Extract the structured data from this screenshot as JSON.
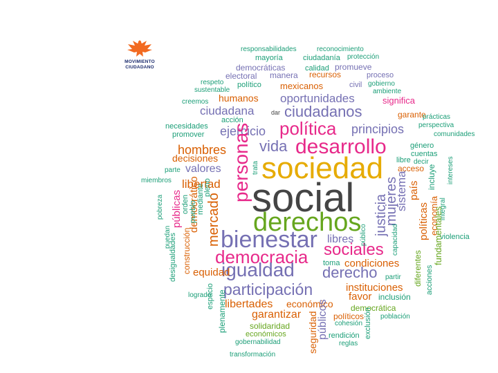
{
  "logo": {
    "line1": "MOVIMIENTO",
    "line2": "CIUDADANO"
  },
  "colors": {
    "orange": "#d95f02",
    "purple": "#7570b3",
    "magenta": "#e7298a",
    "green": "#66a61e",
    "yellow": "#e6ab02",
    "teal": "#1b9e77",
    "gray": "#444444"
  },
  "words": [
    "responsabilidades",
    "reconocimiento",
    "mayoría",
    "ciudadanía",
    "protección",
    "democráticas",
    "calidad",
    "promueve",
    "electoral",
    "manera",
    "recursos",
    "proceso",
    "respeto",
    "político",
    "mexicanos",
    "civil",
    "gobierno",
    "sustentable",
    "ambiente",
    "creemos",
    "humanos",
    "oportunidades",
    "significa",
    "ciudadana",
    "dar",
    "ciudadanos",
    "garante",
    "acción",
    "prácticas",
    "necesidades",
    "política",
    "principios",
    "perspectiva",
    "promover",
    "ejercicio",
    "comunidades",
    "vida",
    "desarrollo",
    "género",
    "hombres",
    "cuentas",
    "decisiones",
    "decir",
    "sociedad",
    "libre",
    "acceso",
    "parte",
    "valores",
    "miembros",
    "libertad",
    "social",
    "derechos",
    "bienestar",
    "libres",
    "violencia",
    "sociales",
    "democracia",
    "toma",
    "condiciones",
    "igualdad",
    "equidad",
    "derecho",
    "partir",
    "participación",
    "instituciones",
    "favor",
    "inclusión",
    "logrado",
    "libertades",
    "económico",
    "democrática",
    "garantizar",
    "políticos",
    "población",
    "solidaridad",
    "cohesión",
    "económicos",
    "rendición",
    "gobernabilidad",
    "reglas",
    "transformación",
    "personas",
    "justicia",
    "mujeres",
    "sistema",
    "país",
    "públicas",
    "democrático",
    "mercado",
    "políticas",
    "economía",
    "pueblo",
    "incluye",
    "integral",
    "intereses",
    "fundamentales",
    "pobreza",
    "puedan",
    "orden",
    "mediante",
    "pleno",
    "construcción",
    "desigualdades",
    "espacio",
    "plenamente",
    "seguridad",
    "públicos",
    "exclusión",
    "público",
    "capacidad",
    "acciones",
    "diferentes",
    "trata"
  ]
}
